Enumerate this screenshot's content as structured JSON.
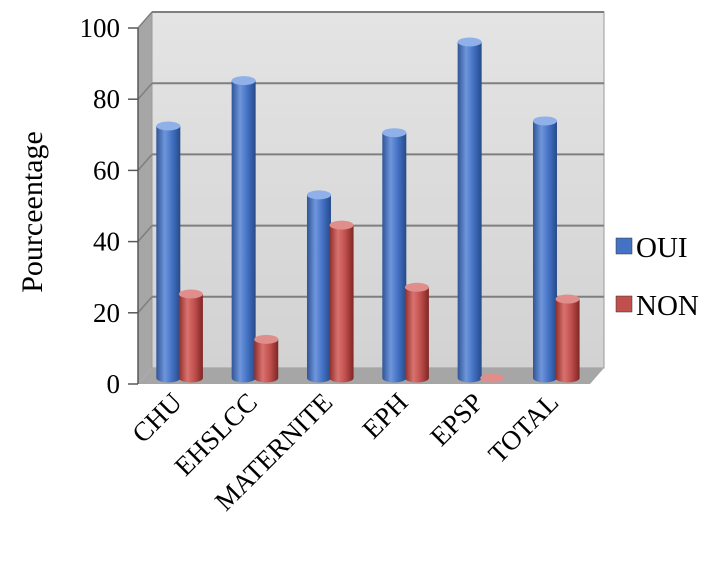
{
  "chart_data": {
    "type": "bar",
    "categories": [
      "CHU",
      "EHSLCC",
      "MATERNITE",
      "EPH",
      "EPSP",
      "TOTAL"
    ],
    "series": [
      {
        "name": "OUI",
        "values": [
          75,
          88.5,
          54.5,
          73,
          100,
          76.5
        ],
        "color": "#4472C4"
      },
      {
        "name": "NON",
        "values": [
          25,
          11.5,
          45.5,
          27,
          0,
          23.5
        ],
        "color": "#C0504D"
      }
    ],
    "ylabel": "Pourceentage",
    "ylim": [
      0,
      100
    ],
    "yticks": [
      0,
      20,
      40,
      60,
      80,
      100
    ],
    "grid": true,
    "legend": "right",
    "wall_color": "#D9D9D9"
  }
}
